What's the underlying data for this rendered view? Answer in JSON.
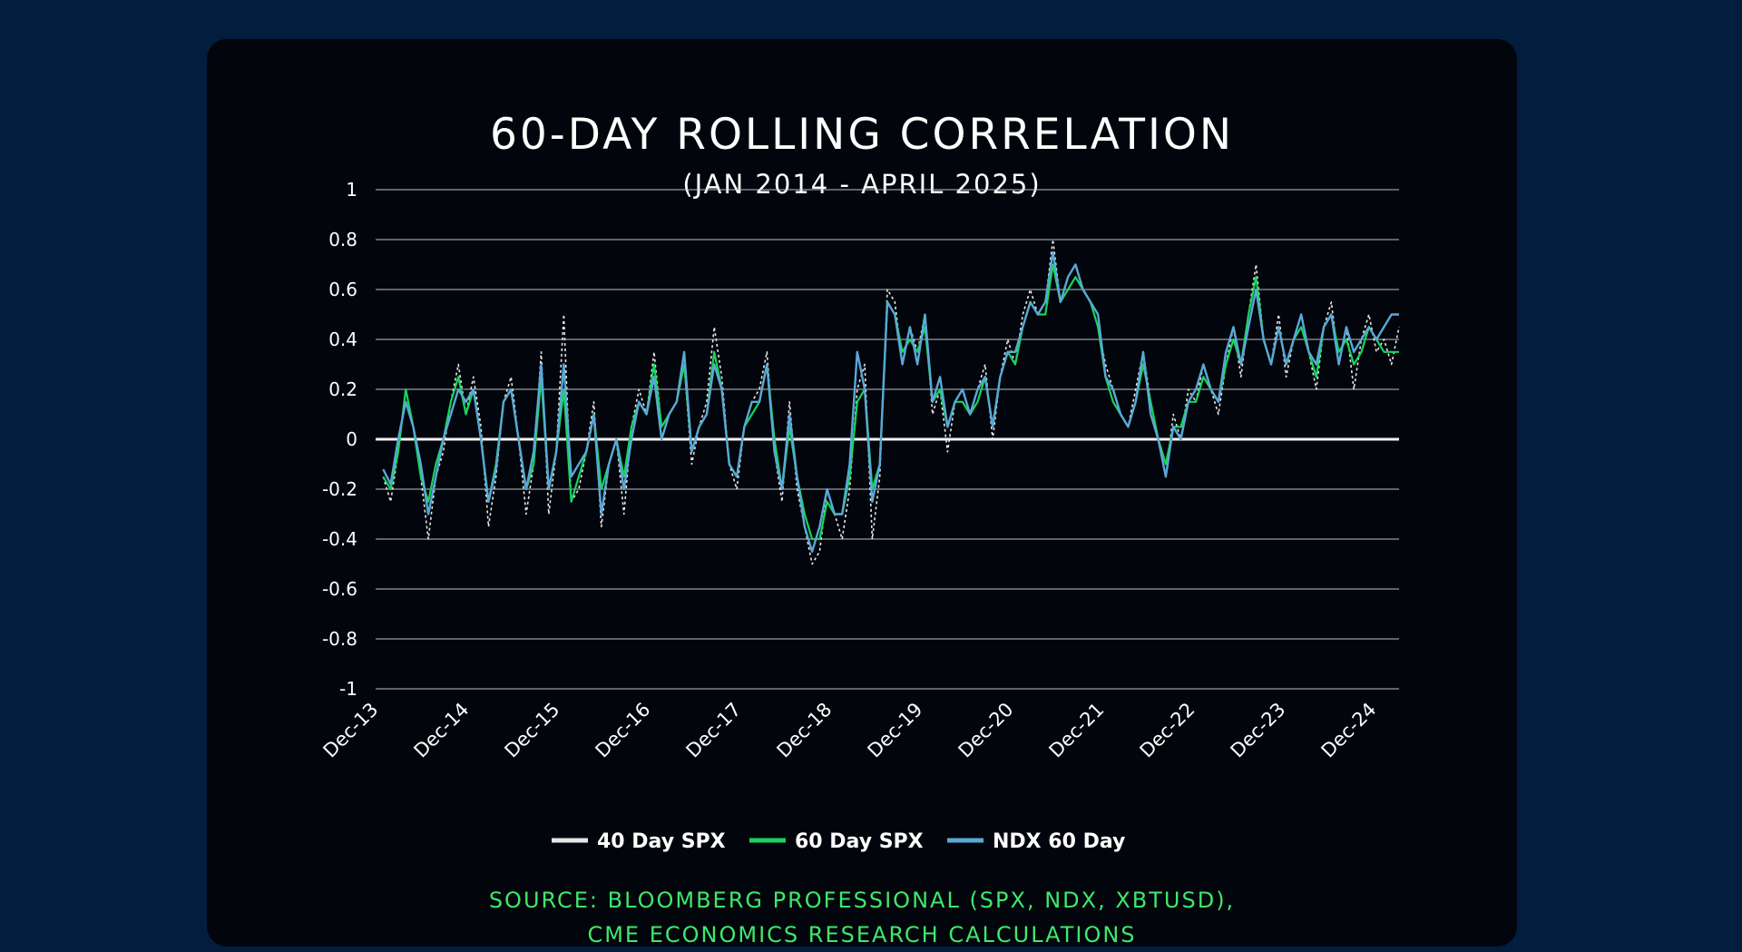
{
  "chart_data": {
    "type": "line",
    "title": "60-DAY ROLLING CORRELATION",
    "subtitle": "(JAN 2014 - APRIL 2025)",
    "xlabel": "",
    "ylabel": "",
    "ylim": [
      -1,
      1
    ],
    "yticks": [
      "1",
      "0.8",
      "0.6",
      "0.4",
      "0.2",
      "0",
      "-0.2",
      "-0.4",
      "-0.6",
      "-0.8",
      "-1"
    ],
    "xticks": [
      "Dec-13",
      "Dec-14",
      "Dec-15",
      "Dec-16",
      "Dec-17",
      "Dec-18",
      "Dec-19",
      "Dec-20",
      "Dec-21",
      "Dec-22",
      "Dec-23",
      "Dec-24"
    ],
    "grid": true,
    "legend_position": "bottom",
    "x_range": [
      "2013-12",
      "2025-04"
    ],
    "colors": {
      "40 Day SPX": "#e6e6e6",
      "60 Day SPX": "#16d45c",
      "NDX 60 Day": "#5aa8d6"
    },
    "series": [
      {
        "name": "40 Day SPX",
        "x": [
          "2014-01",
          "2014-02",
          "2014-03",
          "2014-04",
          "2014-05",
          "2014-06",
          "2014-07",
          "2014-08",
          "2014-09",
          "2014-10",
          "2014-11",
          "2014-12",
          "2015-01",
          "2015-02",
          "2015-03",
          "2015-04",
          "2015-05",
          "2015-06",
          "2015-07",
          "2015-08",
          "2015-09",
          "2015-10",
          "2015-11",
          "2015-12",
          "2016-01",
          "2016-02",
          "2016-03",
          "2016-04",
          "2016-05",
          "2016-06",
          "2016-07",
          "2016-08",
          "2016-09",
          "2016-10",
          "2016-11",
          "2016-12",
          "2017-01",
          "2017-02",
          "2017-03",
          "2017-04",
          "2017-05",
          "2017-06",
          "2017-07",
          "2017-08",
          "2017-09",
          "2017-10",
          "2017-11",
          "2017-12",
          "2018-01",
          "2018-02",
          "2018-03",
          "2018-04",
          "2018-05",
          "2018-06",
          "2018-07",
          "2018-08",
          "2018-09",
          "2018-10",
          "2018-11",
          "2018-12",
          "2019-01",
          "2019-02",
          "2019-03",
          "2019-04",
          "2019-05",
          "2019-06",
          "2019-07",
          "2019-08",
          "2019-09",
          "2019-10",
          "2019-11",
          "2019-12",
          "2020-01",
          "2020-02",
          "2020-03",
          "2020-04",
          "2020-05",
          "2020-06",
          "2020-07",
          "2020-08",
          "2020-09",
          "2020-10",
          "2020-11",
          "2020-12",
          "2021-01",
          "2021-02",
          "2021-03",
          "2021-04",
          "2021-05",
          "2021-06",
          "2021-07",
          "2021-08",
          "2021-09",
          "2021-10",
          "2021-11",
          "2021-12",
          "2022-01",
          "2022-02",
          "2022-03",
          "2022-04",
          "2022-05",
          "2022-06",
          "2022-07",
          "2022-08",
          "2022-09",
          "2022-10",
          "2022-11",
          "2022-12",
          "2023-01",
          "2023-02",
          "2023-03",
          "2023-04",
          "2023-05",
          "2023-06",
          "2023-07",
          "2023-08",
          "2023-09",
          "2023-10",
          "2023-11",
          "2023-12",
          "2024-01",
          "2024-02",
          "2024-03",
          "2024-04",
          "2024-05",
          "2024-06",
          "2024-07",
          "2024-08",
          "2024-09",
          "2024-10",
          "2024-11",
          "2024-12",
          "2025-01",
          "2025-02",
          "2025-03",
          "2025-04"
        ],
        "values": [
          -0.15,
          -0.25,
          -0.05,
          0.2,
          0.05,
          -0.15,
          -0.4,
          -0.15,
          -0.05,
          0.15,
          0.3,
          0.1,
          0.25,
          0.05,
          -0.35,
          -0.15,
          0.15,
          0.25,
          0.0,
          -0.3,
          -0.1,
          0.35,
          -0.3,
          -0.05,
          0.5,
          -0.25,
          -0.2,
          -0.05,
          0.15,
          -0.35,
          -0.1,
          0.0,
          -0.3,
          0.05,
          0.2,
          0.1,
          0.35,
          0.05,
          0.1,
          0.15,
          0.3,
          -0.1,
          0.05,
          0.15,
          0.45,
          0.25,
          -0.1,
          -0.2,
          0.05,
          0.15,
          0.2,
          0.35,
          -0.05,
          -0.25,
          0.15,
          -0.2,
          -0.35,
          -0.5,
          -0.45,
          -0.2,
          -0.3,
          -0.4,
          -0.2,
          0.2,
          0.3,
          -0.4,
          -0.15,
          0.6,
          0.55,
          0.3,
          0.45,
          0.35,
          0.5,
          0.1,
          0.2,
          -0.05,
          0.15,
          0.2,
          0.1,
          0.2,
          0.3,
          0.0,
          0.25,
          0.4,
          0.3,
          0.5,
          0.6,
          0.5,
          0.55,
          0.8,
          0.55,
          0.65,
          0.7,
          0.6,
          0.55,
          0.45,
          0.3,
          0.2,
          0.1,
          0.05,
          0.2,
          0.35,
          0.15,
          0.0,
          -0.15,
          0.1,
          0.0,
          0.2,
          0.15,
          0.3,
          0.2,
          0.1,
          0.3,
          0.45,
          0.25,
          0.5,
          0.7,
          0.4,
          0.3,
          0.5,
          0.25,
          0.4,
          0.5,
          0.35,
          0.2,
          0.45,
          0.55,
          0.3,
          0.45,
          0.2,
          0.4,
          0.5,
          0.35,
          0.4,
          0.3,
          0.45
        ]
      },
      {
        "name": "60 Day SPX",
        "x": [
          "2014-01",
          "2014-02",
          "2014-03",
          "2014-04",
          "2014-05",
          "2014-06",
          "2014-07",
          "2014-08",
          "2014-09",
          "2014-10",
          "2014-11",
          "2014-12",
          "2015-01",
          "2015-02",
          "2015-03",
          "2015-04",
          "2015-05",
          "2015-06",
          "2015-07",
          "2015-08",
          "2015-09",
          "2015-10",
          "2015-11",
          "2015-12",
          "2016-01",
          "2016-02",
          "2016-03",
          "2016-04",
          "2016-05",
          "2016-06",
          "2016-07",
          "2016-08",
          "2016-09",
          "2016-10",
          "2016-11",
          "2016-12",
          "2017-01",
          "2017-02",
          "2017-03",
          "2017-04",
          "2017-05",
          "2017-06",
          "2017-07",
          "2017-08",
          "2017-09",
          "2017-10",
          "2017-11",
          "2017-12",
          "2018-01",
          "2018-02",
          "2018-03",
          "2018-04",
          "2018-05",
          "2018-06",
          "2018-07",
          "2018-08",
          "2018-09",
          "2018-10",
          "2018-11",
          "2018-12",
          "2019-01",
          "2019-02",
          "2019-03",
          "2019-04",
          "2019-05",
          "2019-06",
          "2019-07",
          "2019-08",
          "2019-09",
          "2019-10",
          "2019-11",
          "2019-12",
          "2020-01",
          "2020-02",
          "2020-03",
          "2020-04",
          "2020-05",
          "2020-06",
          "2020-07",
          "2020-08",
          "2020-09",
          "2020-10",
          "2020-11",
          "2020-12",
          "2021-01",
          "2021-02",
          "2021-03",
          "2021-04",
          "2021-05",
          "2021-06",
          "2021-07",
          "2021-08",
          "2021-09",
          "2021-10",
          "2021-11",
          "2021-12",
          "2022-01",
          "2022-02",
          "2022-03",
          "2022-04",
          "2022-05",
          "2022-06",
          "2022-07",
          "2022-08",
          "2022-09",
          "2022-10",
          "2022-11",
          "2022-12",
          "2023-01",
          "2023-02",
          "2023-03",
          "2023-04",
          "2023-05",
          "2023-06",
          "2023-07",
          "2023-08",
          "2023-09",
          "2023-10",
          "2023-11",
          "2023-12",
          "2024-01",
          "2024-02",
          "2024-03",
          "2024-04",
          "2024-05",
          "2024-06",
          "2024-07",
          "2024-08",
          "2024-09",
          "2024-10",
          "2024-11",
          "2024-12",
          "2025-01",
          "2025-02",
          "2025-03",
          "2025-04"
        ],
        "values": [
          -0.15,
          -0.2,
          -0.05,
          0.2,
          0.05,
          -0.15,
          -0.25,
          -0.1,
          0.0,
          0.15,
          0.25,
          0.1,
          0.2,
          0.0,
          -0.25,
          -0.1,
          0.15,
          0.2,
          0.0,
          -0.2,
          -0.1,
          0.25,
          -0.2,
          -0.05,
          0.2,
          -0.25,
          -0.15,
          -0.05,
          0.1,
          -0.2,
          -0.1,
          0.0,
          -0.15,
          0.05,
          0.15,
          0.1,
          0.3,
          0.05,
          0.1,
          0.15,
          0.3,
          -0.05,
          0.05,
          0.1,
          0.35,
          0.2,
          -0.1,
          -0.15,
          0.05,
          0.1,
          0.15,
          0.3,
          0.0,
          -0.2,
          0.05,
          -0.15,
          -0.3,
          -0.4,
          -0.4,
          -0.25,
          -0.3,
          -0.3,
          -0.15,
          0.15,
          0.2,
          -0.2,
          -0.1,
          0.55,
          0.5,
          0.35,
          0.4,
          0.35,
          0.45,
          0.15,
          0.2,
          0.05,
          0.15,
          0.15,
          0.1,
          0.15,
          0.25,
          0.05,
          0.25,
          0.35,
          0.3,
          0.45,
          0.55,
          0.5,
          0.5,
          0.7,
          0.55,
          0.6,
          0.65,
          0.6,
          0.55,
          0.45,
          0.25,
          0.15,
          0.1,
          0.05,
          0.15,
          0.3,
          0.15,
          0.0,
          -0.1,
          0.05,
          0.05,
          0.15,
          0.15,
          0.25,
          0.2,
          0.15,
          0.3,
          0.4,
          0.3,
          0.5,
          0.65,
          0.4,
          0.3,
          0.45,
          0.3,
          0.4,
          0.45,
          0.35,
          0.25,
          0.45,
          0.5,
          0.35,
          0.4,
          0.3,
          0.35,
          0.45,
          0.4,
          0.35,
          0.35,
          0.35
        ]
      },
      {
        "name": "NDX 60 Day",
        "x": [
          "2014-01",
          "2014-02",
          "2014-03",
          "2014-04",
          "2014-05",
          "2014-06",
          "2014-07",
          "2014-08",
          "2014-09",
          "2014-10",
          "2014-11",
          "2014-12",
          "2015-01",
          "2015-02",
          "2015-03",
          "2015-04",
          "2015-05",
          "2015-06",
          "2015-07",
          "2015-08",
          "2015-09",
          "2015-10",
          "2015-11",
          "2015-12",
          "2016-01",
          "2016-02",
          "2016-03",
          "2016-04",
          "2016-05",
          "2016-06",
          "2016-07",
          "2016-08",
          "2016-09",
          "2016-10",
          "2016-11",
          "2016-12",
          "2017-01",
          "2017-02",
          "2017-03",
          "2017-04",
          "2017-05",
          "2017-06",
          "2017-07",
          "2017-08",
          "2017-09",
          "2017-10",
          "2017-11",
          "2017-12",
          "2018-01",
          "2018-02",
          "2018-03",
          "2018-04",
          "2018-05",
          "2018-06",
          "2018-07",
          "2018-08",
          "2018-09",
          "2018-10",
          "2018-11",
          "2018-12",
          "2019-01",
          "2019-02",
          "2019-03",
          "2019-04",
          "2019-05",
          "2019-06",
          "2019-07",
          "2019-08",
          "2019-09",
          "2019-10",
          "2019-11",
          "2019-12",
          "2020-01",
          "2020-02",
          "2020-03",
          "2020-04",
          "2020-05",
          "2020-06",
          "2020-07",
          "2020-08",
          "2020-09",
          "2020-10",
          "2020-11",
          "2020-12",
          "2021-01",
          "2021-02",
          "2021-03",
          "2021-04",
          "2021-05",
          "2021-06",
          "2021-07",
          "2021-08",
          "2021-09",
          "2021-10",
          "2021-11",
          "2021-12",
          "2022-01",
          "2022-02",
          "2022-03",
          "2022-04",
          "2022-05",
          "2022-06",
          "2022-07",
          "2022-08",
          "2022-09",
          "2022-10",
          "2022-11",
          "2022-12",
          "2023-01",
          "2023-02",
          "2023-03",
          "2023-04",
          "2023-05",
          "2023-06",
          "2023-07",
          "2023-08",
          "2023-09",
          "2023-10",
          "2023-11",
          "2023-12",
          "2024-01",
          "2024-02",
          "2024-03",
          "2024-04",
          "2024-05",
          "2024-06",
          "2024-07",
          "2024-08",
          "2024-09",
          "2024-10",
          "2024-11",
          "2024-12",
          "2025-01",
          "2025-02",
          "2025-03",
          "2025-04"
        ],
        "values": [
          -0.12,
          -0.18,
          0.0,
          0.15,
          0.05,
          -0.1,
          -0.3,
          -0.15,
          0.0,
          0.1,
          0.2,
          0.15,
          0.2,
          0.0,
          -0.25,
          -0.12,
          0.15,
          0.2,
          0.0,
          -0.2,
          -0.05,
          0.3,
          -0.2,
          -0.05,
          0.3,
          -0.15,
          -0.1,
          -0.05,
          0.1,
          -0.3,
          -0.1,
          0.0,
          -0.2,
          0.0,
          0.15,
          0.1,
          0.25,
          0.0,
          0.1,
          0.15,
          0.35,
          -0.05,
          0.05,
          0.1,
          0.3,
          0.2,
          -0.1,
          -0.15,
          0.05,
          0.15,
          0.15,
          0.3,
          -0.05,
          -0.2,
          0.1,
          -0.15,
          -0.35,
          -0.45,
          -0.35,
          -0.2,
          -0.3,
          -0.3,
          -0.1,
          0.35,
          0.2,
          -0.25,
          -0.1,
          0.55,
          0.5,
          0.3,
          0.45,
          0.3,
          0.5,
          0.15,
          0.25,
          0.05,
          0.15,
          0.2,
          0.1,
          0.2,
          0.25,
          0.05,
          0.25,
          0.35,
          0.35,
          0.45,
          0.55,
          0.5,
          0.55,
          0.75,
          0.55,
          0.65,
          0.7,
          0.6,
          0.55,
          0.5,
          0.25,
          0.2,
          0.1,
          0.05,
          0.15,
          0.35,
          0.1,
          0.0,
          -0.15,
          0.05,
          0.0,
          0.15,
          0.2,
          0.3,
          0.2,
          0.15,
          0.35,
          0.45,
          0.3,
          0.45,
          0.6,
          0.4,
          0.3,
          0.45,
          0.3,
          0.4,
          0.5,
          0.35,
          0.3,
          0.45,
          0.5,
          0.3,
          0.45,
          0.35,
          0.4,
          0.45,
          0.4,
          0.45,
          0.5,
          0.5
        ]
      }
    ],
    "source_lines": [
      "SOURCE: BLOOMBERG PROFESSIONAL (SPX, NDX, XBTUSD),",
      "CME ECONOMICS RESEARCH CALCULATIONS"
    ]
  }
}
